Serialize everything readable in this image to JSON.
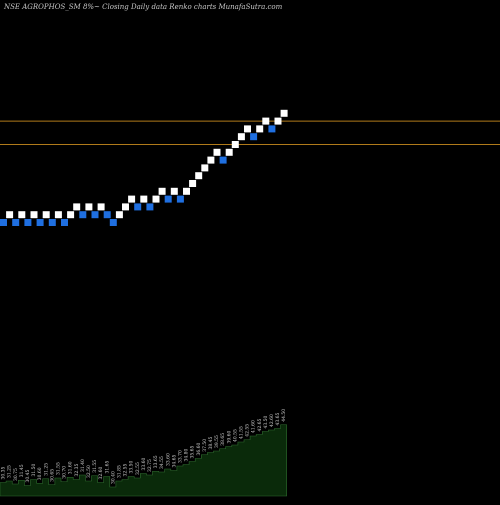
{
  "header": {
    "title": "NSE AGROPHOS_SM 8%~  Closing Daily data  Renko  charts MunafaSutra.com"
  },
  "colors": {
    "background": "#000000",
    "up_brick": "#ffffff",
    "down_brick": "#1f6fe0",
    "reference_line": "#b07a1a",
    "volume_fill": "#0a2a0a",
    "volume_edge": "#2e6b2e",
    "volume_text": "#d8d8d8"
  },
  "chart_data": {
    "type": "renko",
    "reference_levels": [
      1.3,
      1.0
    ],
    "bricks": [
      {
        "dir": "down",
        "level": 0.0
      },
      {
        "dir": "up",
        "level": 0.1
      },
      {
        "dir": "down",
        "level": 0.0
      },
      {
        "dir": "up",
        "level": 0.1
      },
      {
        "dir": "down",
        "level": 0.0
      },
      {
        "dir": "up",
        "level": 0.1
      },
      {
        "dir": "down",
        "level": 0.0
      },
      {
        "dir": "up",
        "level": 0.1
      },
      {
        "dir": "down",
        "level": 0.0
      },
      {
        "dir": "up",
        "level": 0.1
      },
      {
        "dir": "down",
        "level": 0.0
      },
      {
        "dir": "up",
        "level": 0.1
      },
      {
        "dir": "up",
        "level": 0.2
      },
      {
        "dir": "down",
        "level": 0.1
      },
      {
        "dir": "up",
        "level": 0.2
      },
      {
        "dir": "down",
        "level": 0.1
      },
      {
        "dir": "up",
        "level": 0.2
      },
      {
        "dir": "down",
        "level": 0.1
      },
      {
        "dir": "down",
        "level": 0.0
      },
      {
        "dir": "up",
        "level": 0.1
      },
      {
        "dir": "up",
        "level": 0.2
      },
      {
        "dir": "up",
        "level": 0.3
      },
      {
        "dir": "down",
        "level": 0.2
      },
      {
        "dir": "up",
        "level": 0.3
      },
      {
        "dir": "down",
        "level": 0.2
      },
      {
        "dir": "up",
        "level": 0.3
      },
      {
        "dir": "up",
        "level": 0.4
      },
      {
        "dir": "down",
        "level": 0.3
      },
      {
        "dir": "up",
        "level": 0.4
      },
      {
        "dir": "down",
        "level": 0.3
      },
      {
        "dir": "up",
        "level": 0.4
      },
      {
        "dir": "up",
        "level": 0.5
      },
      {
        "dir": "up",
        "level": 0.6
      },
      {
        "dir": "up",
        "level": 0.7
      },
      {
        "dir": "up",
        "level": 0.8
      },
      {
        "dir": "up",
        "level": 0.9
      },
      {
        "dir": "down",
        "level": 0.8
      },
      {
        "dir": "up",
        "level": 0.9
      },
      {
        "dir": "up",
        "level": 1.0
      },
      {
        "dir": "up",
        "level": 1.1
      },
      {
        "dir": "up",
        "level": 1.2
      },
      {
        "dir": "down",
        "level": 1.1
      },
      {
        "dir": "up",
        "level": 1.2
      },
      {
        "dir": "up",
        "level": 1.3
      },
      {
        "dir": "down",
        "level": 1.2
      },
      {
        "dir": "up",
        "level": 1.3
      },
      {
        "dir": "up",
        "level": 1.4
      }
    ],
    "volume": {
      "values": [
        18,
        20,
        16,
        21,
        14,
        22,
        17,
        23,
        15,
        24,
        19,
        25,
        22,
        28,
        20,
        27,
        18,
        26,
        12,
        20,
        22,
        26,
        24,
        30,
        28,
        33,
        32,
        36,
        34,
        40,
        42,
        46,
        50,
        55,
        58,
        60,
        63,
        66,
        68,
        72,
        75,
        80,
        82,
        86,
        88,
        90,
        95
      ],
      "labels": [
        "30.35",
        "31.25",
        "30.75",
        "31.45",
        "30.45",
        "31.50",
        "30.60",
        "31.25",
        "30.65",
        "31.55",
        "30.70",
        "31.60",
        "32.35",
        "31.40",
        "32.50",
        "31.55",
        "32.60",
        "31.65",
        "30.40",
        "31.85",
        "32.55",
        "33.50",
        "32.55",
        "33.60",
        "32.75",
        "33.65",
        "34.55",
        "33.60",
        "34.65",
        "33.70",
        "34.80",
        "35.65",
        "36.60",
        "37.50",
        "38.45",
        "39.55",
        "38.65",
        "39.60",
        "40.55",
        "41.55",
        "42.55",
        "41.60",
        "42.65",
        "43.50",
        "42.60",
        "43.65",
        "44.50"
      ]
    }
  }
}
